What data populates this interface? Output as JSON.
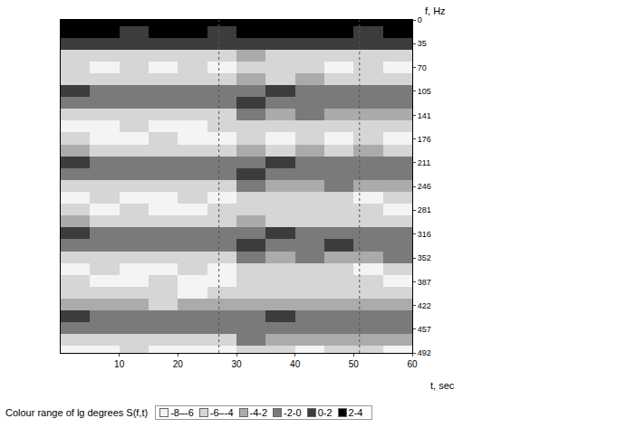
{
  "chart_data": {
    "type": "heatmap",
    "x_label": "t, sec",
    "y_label": "f, Hz",
    "xlim": [
      0,
      60
    ],
    "xticks": [
      10,
      20,
      30,
      40,
      50,
      60
    ],
    "ylim": [
      492,
      0
    ],
    "yticks": [
      0,
      35,
      70,
      105,
      141,
      176,
      211,
      246,
      281,
      316,
      352,
      387,
      422,
      457,
      492
    ],
    "grid": false,
    "vertical_lines": [
      27,
      51
    ],
    "x": [
      2.5,
      7.5,
      12.5,
      17.5,
      22.5,
      27.5,
      32.5,
      37.5,
      42.5,
      47.5,
      52.5,
      57.5
    ],
    "y": [
      0,
      17.5,
      35,
      52.5,
      70,
      87.5,
      105,
      122.5,
      140,
      157.5,
      175,
      192.5,
      210,
      227.5,
      245,
      262.5,
      280,
      297.5,
      315,
      332.5,
      350,
      367.5,
      385,
      402.5,
      420,
      437.5,
      455,
      472.5,
      490
    ],
    "cells": [
      [
        3,
        3,
        3,
        3,
        2.5,
        3,
        3,
        3,
        3,
        2.5,
        3,
        3
      ],
      [
        2,
        2,
        1.5,
        2,
        2,
        1.5,
        2,
        2.5,
        2,
        2,
        1.5,
        2
      ],
      [
        1,
        1,
        1,
        0.5,
        1,
        1,
        1.5,
        1.5,
        1,
        1,
        1,
        1
      ],
      [
        -5,
        -6,
        -6,
        -5,
        -6,
        -6,
        -4,
        -5,
        -5,
        -6,
        -5,
        -6
      ],
      [
        -6,
        -7,
        -6,
        -7,
        -6,
        -7,
        -6,
        -5,
        -6,
        -7,
        -6,
        -7
      ],
      [
        -5,
        -6,
        -6,
        -6,
        -5,
        -6,
        -4,
        -5,
        -4,
        -5,
        -5,
        -6
      ],
      [
        0,
        -1,
        -1,
        -0.5,
        -1,
        -1,
        -1,
        0,
        -0.5,
        -1,
        -0.5,
        -1
      ],
      [
        -2,
        -1,
        -1.5,
        -1,
        -1.5,
        -1,
        0,
        -0.5,
        -1,
        -0.5,
        -1,
        -1
      ],
      [
        -6,
        -6,
        -5,
        -6,
        -6,
        -5,
        -2,
        -3,
        -2,
        -3,
        -4,
        -3
      ],
      [
        -7,
        -7,
        -6,
        -7,
        -7,
        -6,
        -6,
        -5,
        -6,
        -6,
        -5,
        -6
      ],
      [
        -6,
        -7,
        -7,
        -6,
        -7,
        -7,
        -6,
        -7,
        -6,
        -7,
        -6,
        -7
      ],
      [
        -4,
        -6,
        -5,
        -6,
        -5,
        -6,
        -4,
        -5,
        -4,
        -5,
        -4,
        -5
      ],
      [
        0,
        -1,
        -0.5,
        -1,
        -1,
        -0.5,
        -1,
        0,
        -1,
        -0.5,
        -1,
        -1
      ],
      [
        -2,
        -1,
        -1.5,
        -1,
        -2,
        -1,
        0,
        -1,
        -0.5,
        -1,
        -0.5,
        -1
      ],
      [
        -6,
        -6,
        -5,
        -6,
        -6,
        -5,
        -2,
        -3,
        -3,
        -2,
        -3,
        -4
      ],
      [
        -7,
        -6,
        -7,
        -7,
        -6,
        -7,
        -6,
        -5,
        -6,
        -6,
        -7,
        -6
      ],
      [
        -6,
        -7,
        -6,
        -7,
        -7,
        -6,
        -5,
        -6,
        -5,
        -6,
        -6,
        -7
      ],
      [
        -4,
        -5,
        -6,
        -5,
        -6,
        -5,
        -4,
        -5,
        -6,
        -5,
        -5,
        -6
      ],
      [
        0,
        -1,
        -1,
        -0.5,
        -1,
        -1,
        -1,
        0,
        -0.5,
        -1,
        -0.5,
        -1
      ],
      [
        -1,
        -0.5,
        -1,
        -1,
        -1.5,
        -1,
        0,
        -1,
        -0.5,
        0,
        -0.5,
        -1
      ],
      [
        -5,
        -6,
        -5,
        -6,
        -6,
        -5,
        -2,
        -3,
        -2,
        -3,
        -3,
        -2
      ],
      [
        -7,
        -6,
        -7,
        -7,
        -6,
        -7,
        -6,
        -6,
        -5,
        -6,
        -7,
        -6
      ],
      [
        -6,
        -7,
        -7,
        -6,
        -7,
        -7,
        -6,
        -5,
        -6,
        -6,
        -6,
        -7
      ],
      [
        -5,
        -6,
        -6,
        -6,
        -7,
        -6,
        -5,
        -6,
        -5,
        -6,
        -6,
        -6
      ],
      [
        -3,
        -4,
        -4,
        -5,
        -4,
        -4,
        -3,
        -3,
        -4,
        -4,
        -3,
        -4
      ],
      [
        0,
        -1,
        -0.5,
        -1,
        -1,
        -0.5,
        -1,
        0,
        -1,
        -0.5,
        -1,
        -1
      ],
      [
        -1,
        -1,
        -1.5,
        -1,
        -1,
        -1.5,
        -0.5,
        -1,
        -1,
        -0.5,
        -1,
        -1
      ],
      [
        -6,
        -6,
        -5,
        -6,
        -6,
        -6,
        -2,
        -3,
        -3,
        -4,
        -3,
        -3
      ],
      [
        -7,
        -7,
        -6,
        -7,
        -7,
        -7,
        -6,
        -6,
        -7,
        -6,
        -6,
        -7
      ]
    ],
    "color_title": "Colour range of lg degrees S(f,t)",
    "color_range": [
      -8,
      4
    ],
    "color_bins": [
      {
        "range": [
          -8,
          -6
        ],
        "label": "-8–-6",
        "color": "#f4f4f4"
      },
      {
        "range": [
          -6,
          -4
        ],
        "label": "-6–-4",
        "color": "#d6d6d6"
      },
      {
        "range": [
          -4,
          -2
        ],
        "label": "-4-2",
        "color": "#ababab"
      },
      {
        "range": [
          -2,
          0
        ],
        "label": "-2-0",
        "color": "#7a7a7a"
      },
      {
        "range": [
          0,
          2
        ],
        "label": "0-2",
        "color": "#3c3c3c"
      },
      {
        "range": [
          2,
          4
        ],
        "label": "2-4",
        "color": "#000000"
      }
    ]
  }
}
